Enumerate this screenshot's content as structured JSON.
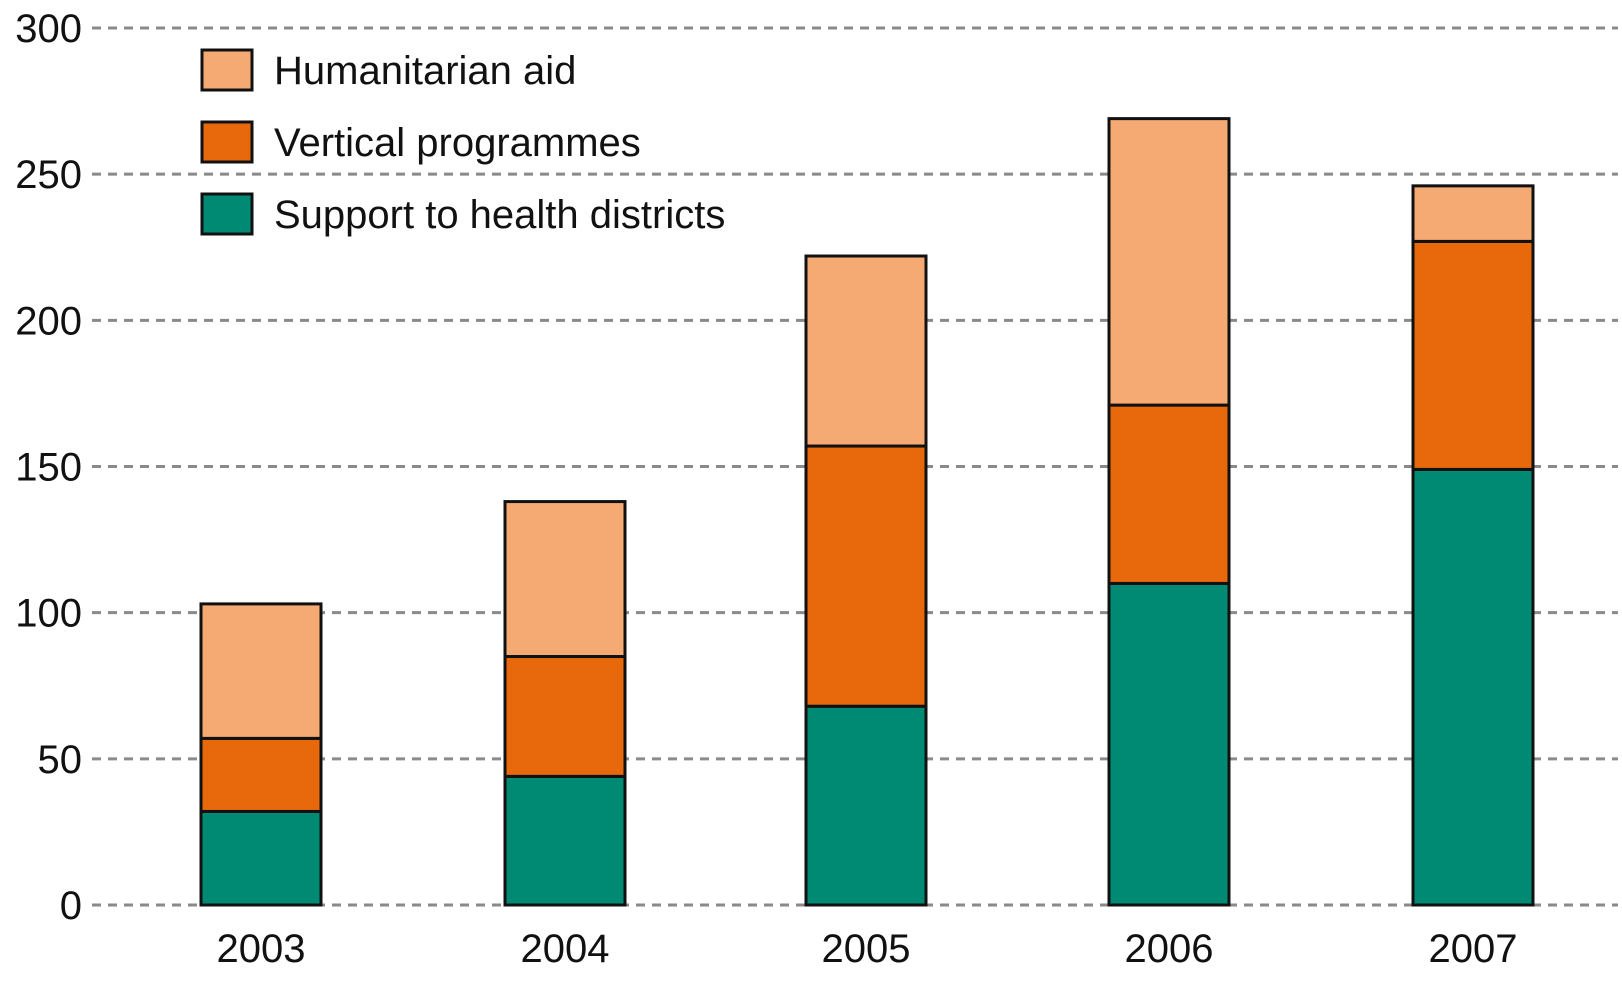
{
  "chart_data": {
    "type": "bar",
    "stacked": true,
    "categories": [
      "2003",
      "2004",
      "2005",
      "2006",
      "2007"
    ],
    "series": [
      {
        "name": "Support to health districts",
        "color": "#008a73",
        "values": [
          32,
          44,
          68,
          110,
          149
        ]
      },
      {
        "name": "Vertical programmes",
        "color": "#e8680c",
        "values": [
          25,
          41,
          89,
          61,
          78
        ]
      },
      {
        "name": "Humanitarian aid",
        "color": "#f4aa72",
        "values": [
          46,
          53,
          65,
          98,
          19
        ]
      }
    ],
    "legend_order": [
      "Humanitarian aid",
      "Vertical programmes",
      "Support to health districts"
    ],
    "yticks": [
      "0",
      "50",
      "100",
      "150",
      "200",
      "250",
      "300"
    ],
    "ylim": [
      0,
      300
    ],
    "grid": "horizontal dashed",
    "legend_position": "top-left",
    "title": "",
    "xlabel": "",
    "ylabel": ""
  }
}
